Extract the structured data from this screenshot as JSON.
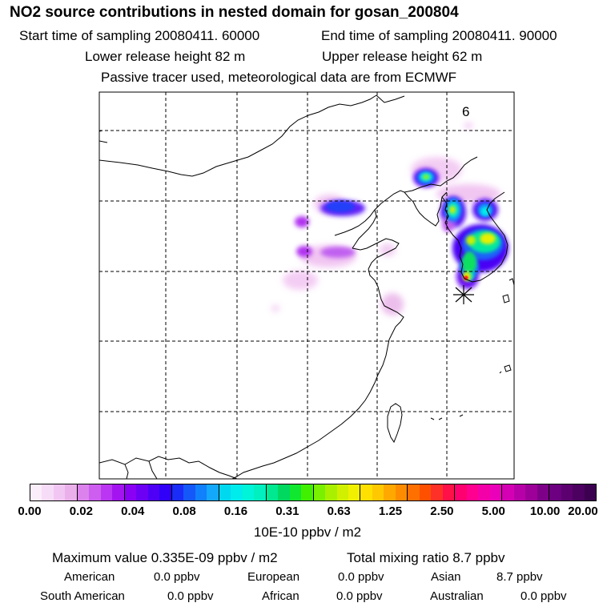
{
  "header": {
    "title": "NO2 source contributions in nested domain for gosan_200804",
    "start_time": "Start time of sampling 20080411. 60000",
    "end_time": "End time of sampling 20080411. 90000",
    "lower_height": "Lower release height   82 m",
    "upper_height": "Upper release height   62 m",
    "tracer_note": "Passive tracer used, meteorological data are from ECMWF"
  },
  "map": {
    "label_number": "6",
    "marker": "receptor-star"
  },
  "colorbar": {
    "ticks": [
      "0.00",
      "0.02",
      "0.04",
      "0.08",
      "0.16",
      "0.31",
      "0.63",
      "1.25",
      "2.50",
      "5.00",
      "10.00",
      "20.00"
    ],
    "segments": [
      [
        "#fbeefb",
        "#f7dcf7",
        "#f2c6f2",
        "#eab0ea"
      ],
      [
        "#dc82ec",
        "#cd5ef0",
        "#bb36f2",
        "#a414f0"
      ],
      [
        "#8a00f4",
        "#6c00f4",
        "#4e00f6",
        "#3000f8"
      ],
      [
        "#1a2cf8",
        "#1458fa",
        "#1080fc",
        "#14a8fc"
      ],
      [
        "#00d8f0",
        "#00ecec",
        "#00f4d8",
        "#00f0c0"
      ],
      [
        "#00e890",
        "#00d860",
        "#10e830",
        "#40f000"
      ],
      [
        "#78f000",
        "#a8f000",
        "#d0f000",
        "#f0f000"
      ],
      [
        "#ffe000",
        "#ffc800",
        "#ffa800",
        "#ff8c00"
      ],
      [
        "#ff7000",
        "#ff5000",
        "#ff3028",
        "#ff1048"
      ],
      [
        "#ff0070",
        "#ff0090",
        "#f400a8",
        "#ea00b8"
      ],
      [
        "#d400b4",
        "#b800a8",
        "#9c0098",
        "#7c0088"
      ],
      [
        "#6c0080",
        "#5c0070",
        "#4c0060",
        "#3c0050"
      ]
    ],
    "unit": "10E-10 ppbv / m2"
  },
  "stats": {
    "max_value": "Maximum value  0.335E-09 ppbv / m2",
    "total_mixing": "Total mixing ratio        8.7 ppbv",
    "american_label": "American",
    "american_val": "0.0 ppbv",
    "european_label": "European",
    "european_val": "0.0 ppbv",
    "asian_label": "Asian",
    "asian_val": "8.7 ppbv",
    "south_american_label": "South American",
    "south_american_val": "0.0 ppbv",
    "african_label": "African",
    "african_val": "0.0 ppbv",
    "australian_label": "Australian",
    "australian_val": "0.0 ppbv"
  }
}
